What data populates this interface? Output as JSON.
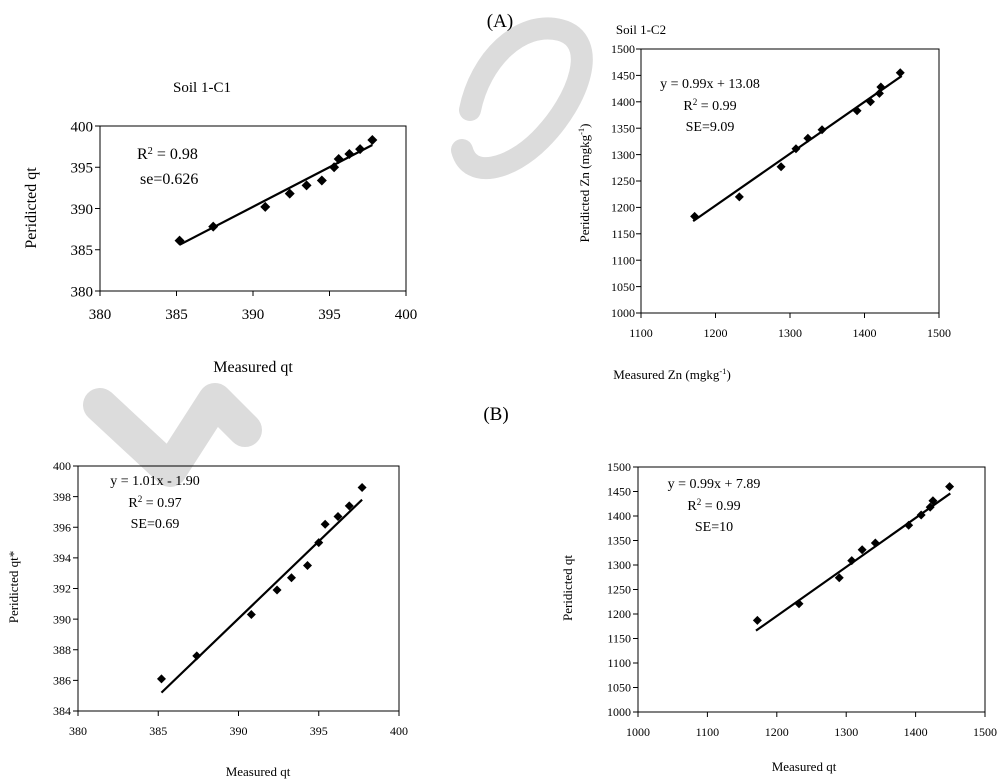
{
  "panel_labels": {
    "a": "(A)",
    "b": "(B)"
  },
  "colors": {
    "marker": "#000000",
    "line": "#000000",
    "watermark": "#d8d8d8"
  },
  "chart_data": [
    {
      "type": "scatter",
      "title": "Soil 1-C1",
      "xlabel": "Measured qt",
      "ylabel": "Peridicted qt",
      "xlim": [
        380,
        400
      ],
      "ylim": [
        380,
        400
      ],
      "xticks": [
        380,
        385,
        390,
        395,
        400
      ],
      "yticks": [
        380,
        385,
        390,
        395,
        400
      ],
      "annotations": [
        "R^2 = 0.98",
        "se=0.626"
      ],
      "points": [
        [
          385.2,
          386.1
        ],
        [
          387.4,
          387.8
        ],
        [
          390.8,
          390.2
        ],
        [
          392.4,
          391.8
        ],
        [
          393.5,
          392.8
        ],
        [
          394.5,
          393.4
        ],
        [
          395.3,
          395.0
        ],
        [
          395.6,
          396.0
        ],
        [
          396.3,
          396.6
        ],
        [
          397.0,
          397.2
        ],
        [
          397.8,
          398.3
        ]
      ],
      "fit": {
        "x": [
          385.2,
          397.8
        ],
        "y": [
          385.6,
          397.7
        ]
      }
    },
    {
      "type": "scatter",
      "title": "Soil 1-C2",
      "xlabel": "Measured Zn (mgkg^-1)",
      "ylabel": "Peridicted Zn (mgkg^-1)",
      "xlim": [
        1100,
        1500
      ],
      "ylim": [
        1000,
        1500
      ],
      "xticks": [
        1100,
        1200,
        1300,
        1400,
        1500
      ],
      "yticks": [
        1000,
        1050,
        1100,
        1150,
        1200,
        1250,
        1300,
        1350,
        1400,
        1450,
        1500
      ],
      "annotations": [
        "y = 0.99x + 13.08",
        "R^2 = 0.99",
        "SE=9.09"
      ],
      "points": [
        [
          1172,
          1183
        ],
        [
          1232,
          1220
        ],
        [
          1288,
          1277
        ],
        [
          1308,
          1311
        ],
        [
          1324,
          1331
        ],
        [
          1343,
          1347
        ],
        [
          1390,
          1383
        ],
        [
          1408,
          1400
        ],
        [
          1420,
          1416
        ],
        [
          1422,
          1428
        ],
        [
          1448,
          1455
        ]
      ],
      "fit": {
        "x": [
          1170,
          1450
        ],
        "y": [
          1174,
          1449
        ]
      }
    },
    {
      "type": "scatter",
      "title": "",
      "xlabel": "Measured qt",
      "ylabel": "Peridicted qt*",
      "xlim": [
        380,
        400
      ],
      "ylim": [
        384,
        400
      ],
      "xticks": [
        380,
        385,
        390,
        395,
        400
      ],
      "yticks": [
        384,
        386,
        388,
        390,
        392,
        394,
        396,
        398,
        400
      ],
      "annotations": [
        "y = 1.01x - 1.90",
        "R^2 = 0.97",
        "SE=0.69"
      ],
      "points": [
        [
          385.2,
          386.1
        ],
        [
          387.4,
          387.6
        ],
        [
          390.8,
          390.3
        ],
        [
          392.4,
          391.9
        ],
        [
          393.3,
          392.7
        ],
        [
          394.3,
          393.5
        ],
        [
          395.0,
          395.0
        ],
        [
          395.4,
          396.2
        ],
        [
          396.2,
          396.7
        ],
        [
          396.9,
          397.4
        ],
        [
          397.7,
          398.6
        ]
      ],
      "fit": {
        "x": [
          385.2,
          397.7
        ],
        "y": [
          385.2,
          397.8
        ]
      }
    },
    {
      "type": "scatter",
      "title": "",
      "xlabel": "Measured qt",
      "ylabel": "Peridicted qt",
      "xlim": [
        1000,
        1500
      ],
      "ylim": [
        1000,
        1500
      ],
      "xticks": [
        1000,
        1100,
        1200,
        1300,
        1400,
        1500
      ],
      "yticks": [
        1000,
        1050,
        1100,
        1150,
        1200,
        1250,
        1300,
        1350,
        1400,
        1450,
        1500
      ],
      "annotations": [
        "y = 0.99x + 7.89",
        "R^2 = 0.99",
        "SE=10"
      ],
      "points": [
        [
          1172,
          1187
        ],
        [
          1232,
          1221
        ],
        [
          1290,
          1274
        ],
        [
          1308,
          1309
        ],
        [
          1323,
          1331
        ],
        [
          1342,
          1345
        ],
        [
          1390,
          1381
        ],
        [
          1408,
          1402
        ],
        [
          1421,
          1418
        ],
        [
          1425,
          1431
        ],
        [
          1449,
          1460
        ]
      ],
      "fit": {
        "x": [
          1170,
          1450
        ],
        "y": [
          1166,
          1446
        ]
      }
    }
  ]
}
